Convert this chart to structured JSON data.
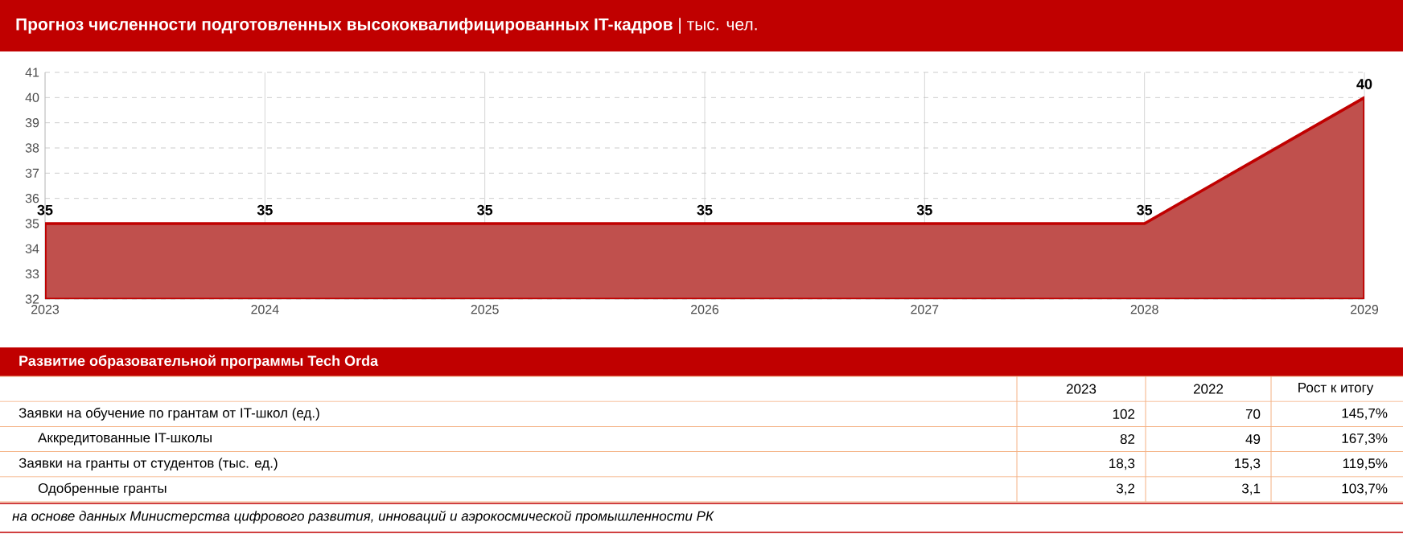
{
  "chart_data": [
    {
      "type": "area",
      "title": "Прогноз численности подготовленных высококвалифицированных IT-кадров",
      "subtitle": "| тыс. чел.",
      "categories": [
        "2023",
        "2024",
        "2025",
        "2026",
        "2027",
        "2028",
        "2029"
      ],
      "series": [
        {
          "color": "#c0504d",
          "values": [
            35,
            35,
            35,
            35,
            35,
            35,
            40
          ]
        }
      ],
      "ylim": [
        32,
        41
      ],
      "yticks": [
        32,
        33,
        34,
        35,
        36,
        37,
        38,
        39,
        40,
        41
      ],
      "grid": true,
      "data_labels": true
    },
    {
      "type": "other",
      "title": "Развитие образовательной программы Tech Orda",
      "annotations": [
        "2023",
        "2022",
        "Рост к итогу",
        "Заявки на обучение по грантам от IT-школ (ед.)",
        "102",
        "70",
        "145,7%",
        "Аккредитованные IT-школы",
        "82",
        "49",
        "167,3%",
        "Заявки на гранты от студентов (тыс. ед.)",
        "18,3",
        "15,3",
        "119,5%",
        "Одобренные гранты",
        "3,2",
        "3,1",
        "103,7%",
        "на основе данных Министерства цифрового развития, инноваций и аэрокосмической промышленности РК"
      ]
    }
  ]
}
